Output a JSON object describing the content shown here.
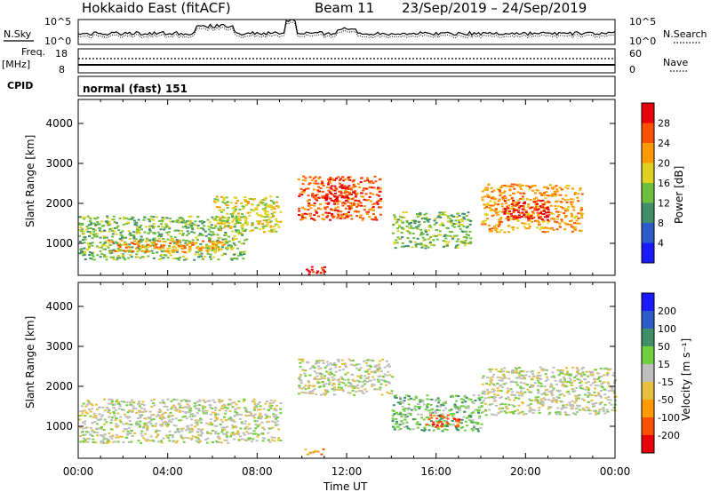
{
  "header": {
    "title": "Hokkaido East (fitACF)",
    "beam": "Beam 11",
    "date_range": "23/Sep/2019 – 24/Sep/2019"
  },
  "params": {
    "nsky_label": "N.Sky",
    "nsearch_label": "N.Search",
    "freq_label_1": "Freq.",
    "freq_label_2": "[MHz]",
    "nave_label": "Nave",
    "cpid_label": "CPID",
    "cpid_value": "normal (fast) 151",
    "noise_ticks": [
      "10^5",
      "10^0"
    ],
    "freq_ticks": [
      "18",
      "8"
    ],
    "nave_ticks": [
      "60",
      "0"
    ]
  },
  "chart_data": [
    {
      "type": "heatmap",
      "panel": "power",
      "ylabel": "Slant Range [km]",
      "yticks": [
        "1000",
        "2000",
        "3000",
        "4000"
      ],
      "ylim": [
        200,
        4600
      ],
      "colorbar_label": "Power [dB]",
      "colorbar_ticks": [
        "4",
        "8",
        "12",
        "16",
        "20",
        "24",
        "28"
      ],
      "colors": [
        "#1a1aff",
        "#2b5cc9",
        "#3f8f6a",
        "#6fbf3f",
        "#e0d020",
        "#ff9a00",
        "#ff5000",
        "#e8000a"
      ],
      "regions": [
        {
          "x0": 0,
          "x1": 7.5,
          "y0": 600,
          "y1": 1700,
          "level": 3
        },
        {
          "x0": 1,
          "x1": 6.5,
          "y0": 800,
          "y1": 1100,
          "level": 5
        },
        {
          "x0": 6,
          "x1": 9,
          "y0": 1300,
          "y1": 2200,
          "level": 4
        },
        {
          "x0": 9.8,
          "x1": 13.5,
          "y0": 1600,
          "y1": 2700,
          "level": 6
        },
        {
          "x0": 11,
          "x1": 12.5,
          "y0": 2000,
          "y1": 2500,
          "level": 7
        },
        {
          "x0": 14,
          "x1": 17.5,
          "y0": 900,
          "y1": 1800,
          "level": 3
        },
        {
          "x0": 18,
          "x1": 22.5,
          "y0": 1300,
          "y1": 2500,
          "level": 5
        },
        {
          "x0": 19,
          "x1": 21,
          "y0": 1600,
          "y1": 2100,
          "level": 7
        },
        {
          "x0": 10,
          "x1": 11,
          "y0": 250,
          "y1": 450,
          "level": 7
        }
      ]
    },
    {
      "type": "heatmap",
      "panel": "velocity",
      "ylabel": "Slant Range [km]",
      "xlabel": "Time UT",
      "xticks": [
        "00:00",
        "04:00",
        "08:00",
        "12:00",
        "16:00",
        "20:00",
        "00:00"
      ],
      "xlim": [
        0,
        24
      ],
      "yticks": [
        "1000",
        "2000",
        "3000",
        "4000"
      ],
      "ylim": [
        200,
        4600
      ],
      "colorbar_label": "Velocity [m s⁻¹]",
      "colorbar_ticks": [
        "-200",
        "-100",
        "-50",
        "-15",
        "15",
        "50",
        "100",
        "200"
      ],
      "colors": [
        "#e8000a",
        "#ff5000",
        "#ff9a00",
        "#e8c040",
        "#bebebe",
        "#6fcf3f",
        "#3f8f6a",
        "#2b5cc9",
        "#1a1aff"
      ],
      "regions": [
        {
          "x0": 0,
          "x1": 9,
          "y0": 600,
          "y1": 1700,
          "level": 4
        },
        {
          "x0": 9.8,
          "x1": 14,
          "y0": 1800,
          "y1": 2700,
          "level": 4
        },
        {
          "x0": 14,
          "x1": 18,
          "y0": 900,
          "y1": 1800,
          "level": 5
        },
        {
          "x0": 15.5,
          "x1": 17,
          "y0": 1000,
          "y1": 1300,
          "level": 1
        },
        {
          "x0": 18,
          "x1": 24,
          "y0": 1300,
          "y1": 2500,
          "level": 4
        },
        {
          "x0": 10,
          "x1": 11,
          "y0": 300,
          "y1": 450,
          "level": 2
        }
      ]
    }
  ]
}
